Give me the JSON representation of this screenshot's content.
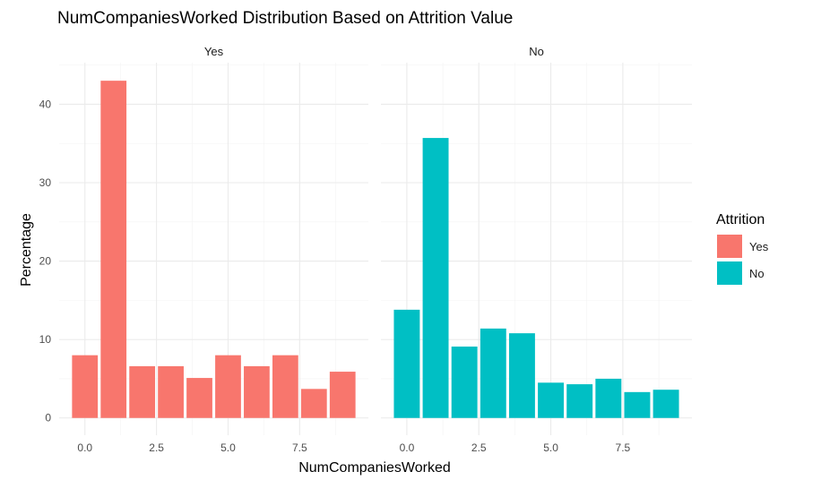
{
  "chart_data": {
    "type": "bar",
    "title": "NumCompaniesWorked Distribution Based on Attrition Value",
    "xlabel": "NumCompaniesWorked",
    "ylabel": "Percentage",
    "x": [
      0,
      1,
      2,
      3,
      4,
      5,
      6,
      7,
      8,
      9
    ],
    "xlim": [
      -0.9,
      9.9
    ],
    "ylim": [
      -2.2,
      45.3
    ],
    "x_ticks": [
      "0.0",
      "2.5",
      "5.0",
      "7.5"
    ],
    "x_tick_values": [
      0,
      2.5,
      5,
      7.5
    ],
    "y_ticks": [
      "0",
      "10",
      "20",
      "30",
      "40"
    ],
    "y_tick_values": [
      0,
      10,
      20,
      30,
      40
    ],
    "grid": true,
    "legend": {
      "title": "Attrition",
      "placement": "right",
      "entries": [
        {
          "label": "Yes",
          "color": "#F8766D"
        },
        {
          "label": "No",
          "color": "#00BFC4"
        }
      ]
    },
    "facets": [
      {
        "label": "Yes",
        "color": "#F8766D",
        "values": [
          8.0,
          43.0,
          6.6,
          6.6,
          5.1,
          8.0,
          6.6,
          8.0,
          3.7,
          5.9
        ]
      },
      {
        "label": "No",
        "color": "#00BFC4",
        "values": [
          13.8,
          35.7,
          9.1,
          11.4,
          10.8,
          4.5,
          4.3,
          5.0,
          3.3,
          3.6
        ]
      }
    ]
  }
}
